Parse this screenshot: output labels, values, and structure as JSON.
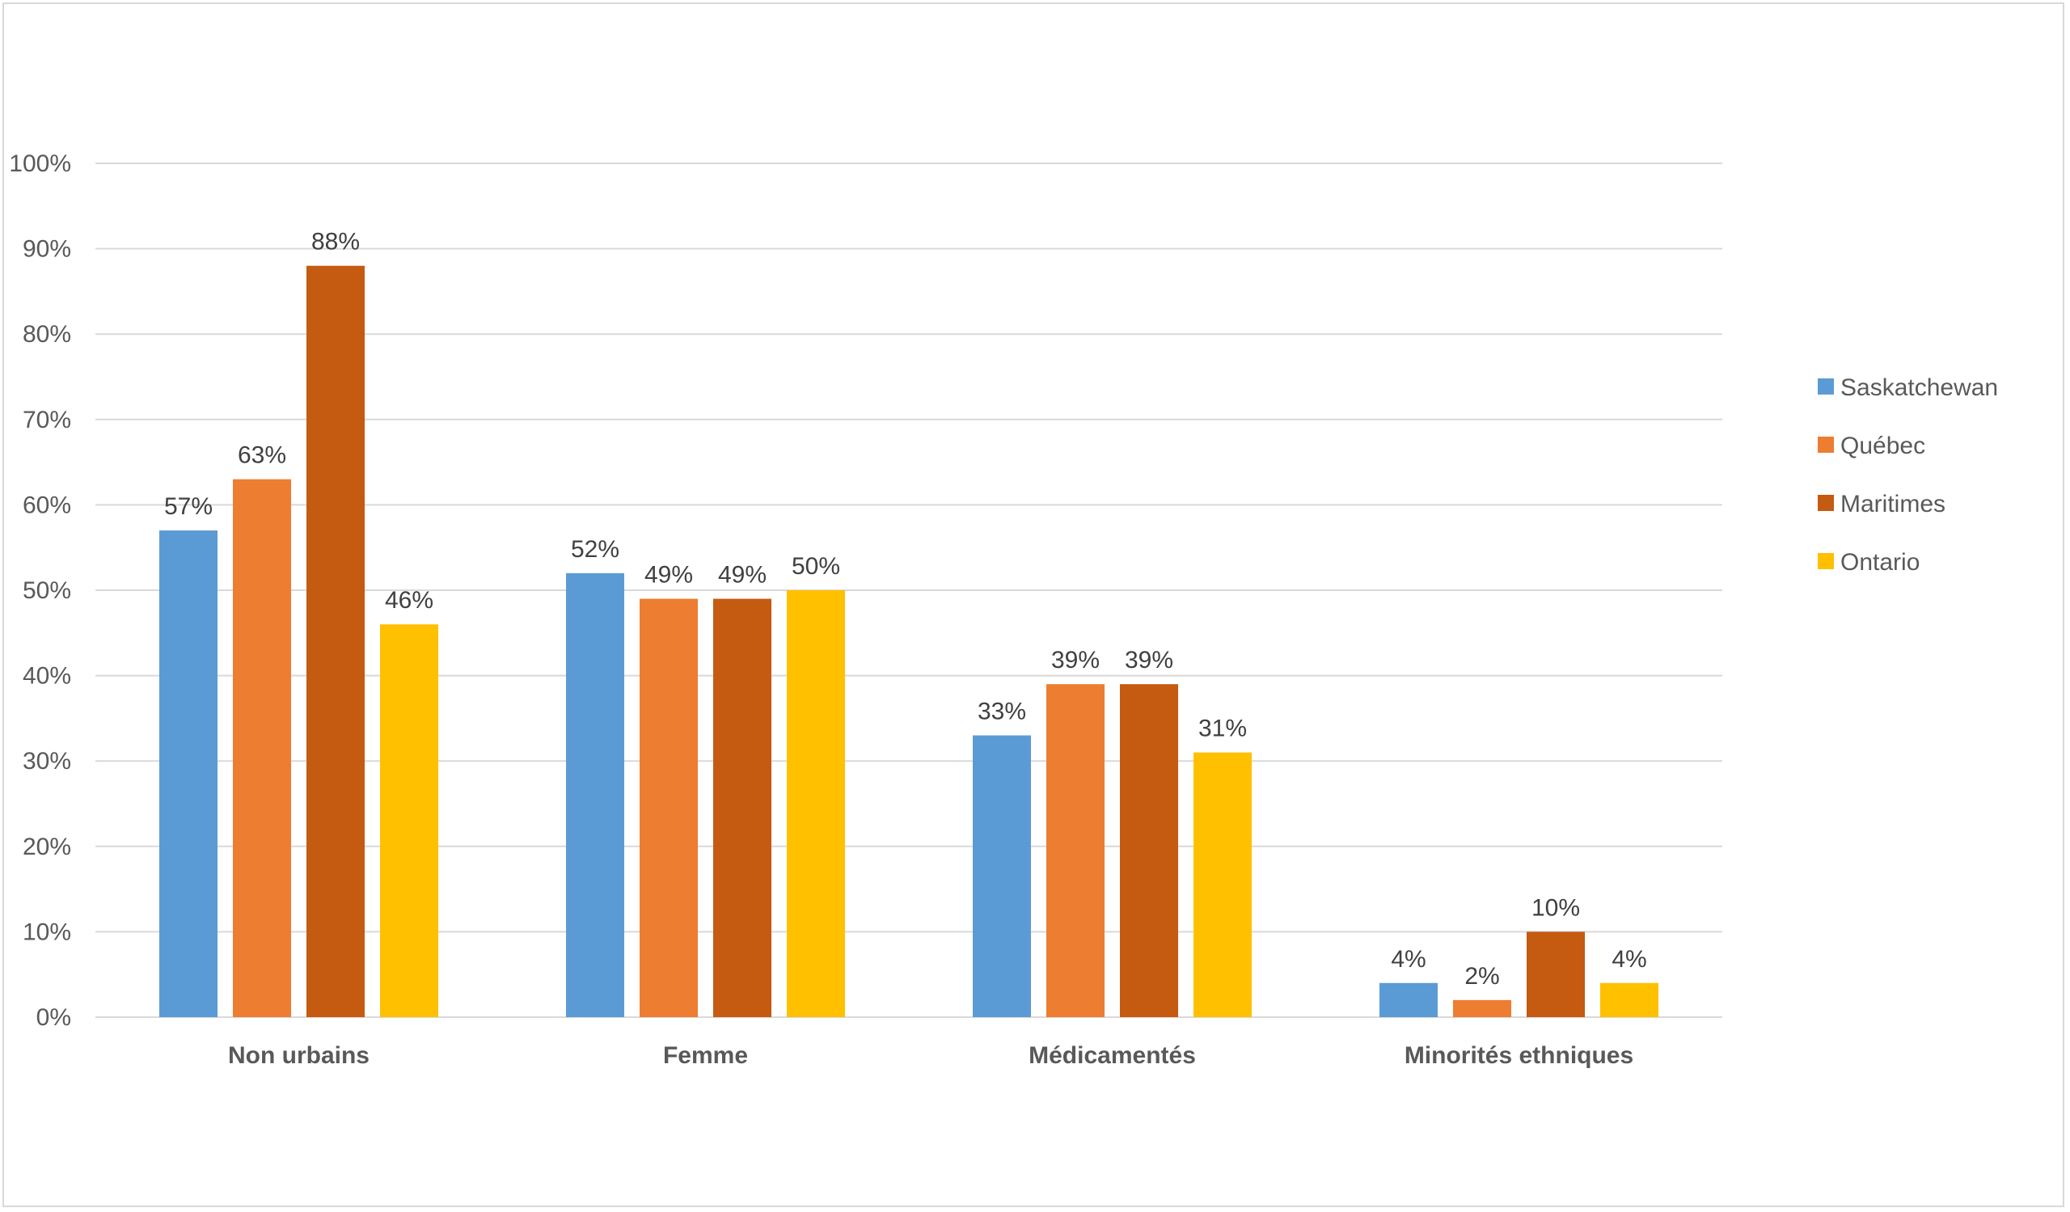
{
  "chart_data": {
    "type": "bar",
    "categories": [
      "Non urbains",
      "Femme",
      "Médicamentés",
      "Minorités ethniques"
    ],
    "series": [
      {
        "name": "Saskatchewan",
        "values": [
          57,
          52,
          33,
          4
        ],
        "color": "#5B9BD5"
      },
      {
        "name": "Québec",
        "values": [
          63,
          49,
          39,
          2
        ],
        "color": "#ED7D31"
      },
      {
        "name": "Maritimes",
        "values": [
          88,
          49,
          39,
          10
        ],
        "color": "#C55A11"
      },
      {
        "name": "Ontario",
        "values": [
          46,
          50,
          31,
          4
        ],
        "color": "#FFC000"
      }
    ],
    "ylim": [
      0,
      100
    ],
    "yticks": [
      0,
      10,
      20,
      30,
      40,
      50,
      60,
      70,
      80,
      90,
      100
    ],
    "tick_suffix": "%",
    "value_suffix": "%",
    "grid": true,
    "legend_position": "right",
    "title": "",
    "xlabel": "",
    "ylabel": "",
    "colors": {
      "grid": "#d9d9d9",
      "axis": "#d9d9d9",
      "border": "#d9d9d9"
    }
  }
}
